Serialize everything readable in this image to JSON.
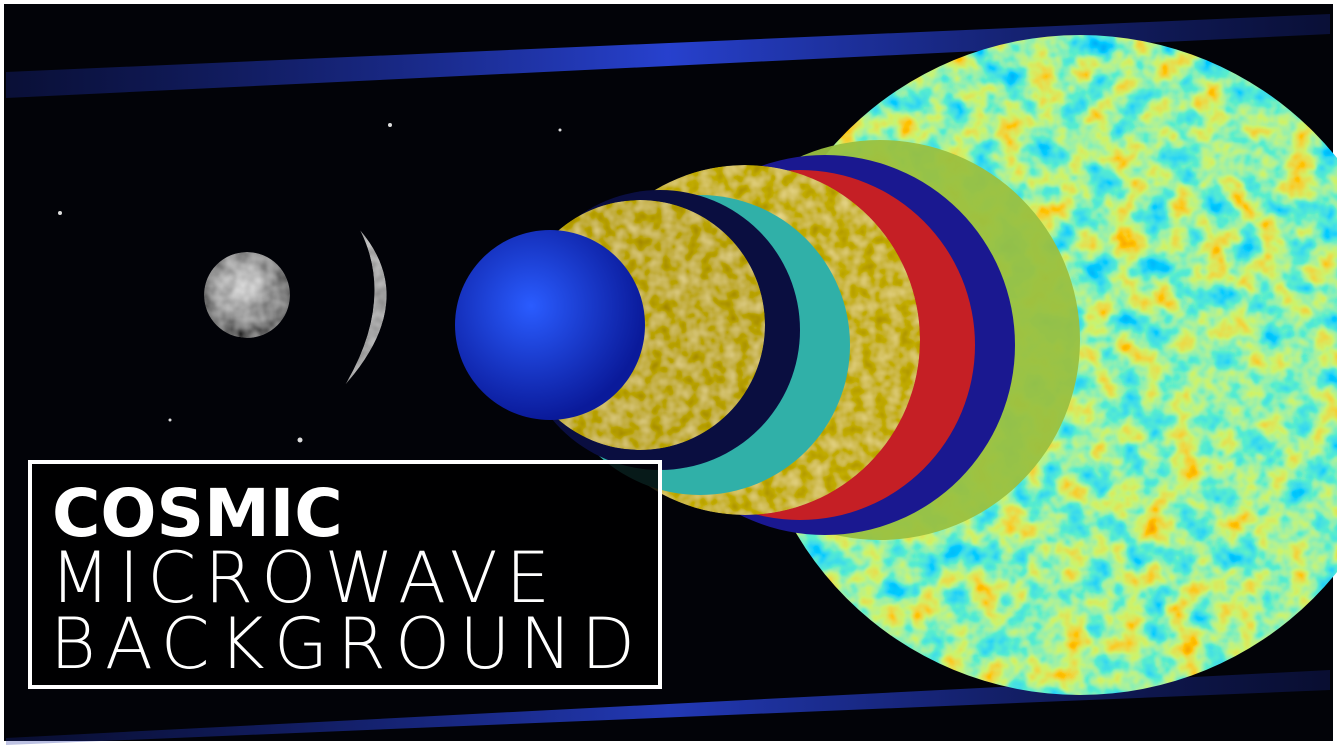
{
  "title_box": {
    "lines": [
      "COSMIC",
      "MICROWAVE",
      "BACKGROUND"
    ]
  }
}
